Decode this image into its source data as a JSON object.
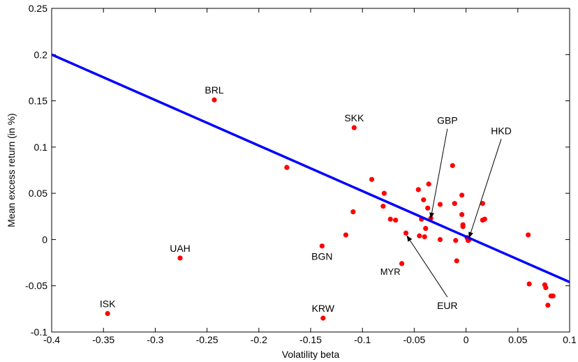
{
  "chart_data": {
    "type": "scatter",
    "title": "",
    "xlabel": "Volatility beta",
    "ylabel": "Mean excess return (in %)",
    "xlim": [
      -0.4,
      0.1
    ],
    "ylim": [
      -0.1,
      0.25
    ],
    "x_ticks": [
      -0.4,
      -0.35,
      -0.3,
      -0.25,
      -0.2,
      -0.15,
      -0.1,
      -0.05,
      0,
      0.05,
      0.1
    ],
    "x_tick_labels": [
      "-0.4",
      "-0.35",
      "-0.3",
      "-0.25",
      "-0.2",
      "-0.15",
      "-0.1",
      "-0.05",
      "0",
      "0.05",
      "0.1"
    ],
    "y_ticks": [
      -0.1,
      -0.05,
      0,
      0.05,
      0.1,
      0.15,
      0.2,
      0.25
    ],
    "y_tick_labels": [
      "-0.1",
      "-0.05",
      "0",
      "0.05",
      "0.1",
      "0.15",
      "0.2",
      "0.25"
    ],
    "grid": false,
    "colors": {
      "points": "#ff0000",
      "fit_line": "#0000ff",
      "axes": "#000000"
    },
    "fit_line": {
      "x": [
        -0.4,
        0.1
      ],
      "y": [
        0.2,
        -0.046
      ]
    },
    "points": [
      {
        "x": -0.346,
        "y": -0.08
      },
      {
        "x": -0.276,
        "y": -0.02
      },
      {
        "x": -0.243,
        "y": 0.151
      },
      {
        "x": -0.173,
        "y": 0.078
      },
      {
        "x": -0.139,
        "y": -0.007
      },
      {
        "x": -0.138,
        "y": -0.085
      },
      {
        "x": -0.116,
        "y": 0.005
      },
      {
        "x": -0.109,
        "y": 0.03
      },
      {
        "x": -0.108,
        "y": 0.121
      },
      {
        "x": -0.091,
        "y": 0.065
      },
      {
        "x": -0.08,
        "y": 0.036
      },
      {
        "x": -0.079,
        "y": 0.05
      },
      {
        "x": -0.073,
        "y": 0.022
      },
      {
        "x": -0.068,
        "y": 0.021
      },
      {
        "x": -0.062,
        "y": -0.026
      },
      {
        "x": -0.058,
        "y": 0.007
      },
      {
        "x": -0.046,
        "y": 0.054
      },
      {
        "x": -0.045,
        "y": 0.004
      },
      {
        "x": -0.043,
        "y": 0.022
      },
      {
        "x": -0.041,
        "y": 0.043
      },
      {
        "x": -0.04,
        "y": 0.003
      },
      {
        "x": -0.039,
        "y": 0.012
      },
      {
        "x": -0.037,
        "y": 0.034
      },
      {
        "x": -0.036,
        "y": 0.06
      },
      {
        "x": -0.034,
        "y": 0.023
      },
      {
        "x": -0.025,
        "y": 0.038
      },
      {
        "x": -0.025,
        "y": 0.0
      },
      {
        "x": -0.013,
        "y": 0.08
      },
      {
        "x": -0.011,
        "y": 0.039
      },
      {
        "x": -0.01,
        "y": -0.001
      },
      {
        "x": -0.009,
        "y": -0.023
      },
      {
        "x": -0.004,
        "y": 0.048
      },
      {
        "x": -0.004,
        "y": 0.027
      },
      {
        "x": -0.003,
        "y": 0.014
      },
      {
        "x": -0.003,
        "y": 0.016
      },
      {
        "x": 0.001,
        "y": 0.002
      },
      {
        "x": 0.002,
        "y": -0.001
      },
      {
        "x": 0.003,
        "y": 0.0
      },
      {
        "x": 0.016,
        "y": 0.039
      },
      {
        "x": 0.016,
        "y": 0.021
      },
      {
        "x": 0.018,
        "y": 0.022
      },
      {
        "x": 0.06,
        "y": 0.005
      },
      {
        "x": 0.061,
        "y": -0.048
      },
      {
        "x": 0.076,
        "y": -0.049
      },
      {
        "x": 0.077,
        "y": -0.052
      },
      {
        "x": 0.079,
        "y": -0.071
      },
      {
        "x": 0.082,
        "y": -0.061
      },
      {
        "x": 0.084,
        "y": -0.061
      }
    ],
    "annotations": [
      {
        "text": "BRL",
        "x": -0.243,
        "y": 0.151,
        "anchor": "above",
        "size": "normal"
      },
      {
        "text": "SKK",
        "x": -0.108,
        "y": 0.121,
        "anchor": "above",
        "size": "normal"
      },
      {
        "text": "UAH",
        "x": -0.276,
        "y": -0.02,
        "anchor": "above",
        "size": "normal"
      },
      {
        "text": "ISK",
        "x": -0.346,
        "y": -0.08,
        "anchor": "above",
        "size": "normal"
      },
      {
        "text": "BGN",
        "x": -0.139,
        "y": -0.007,
        "anchor": "below",
        "size": "normal"
      },
      {
        "text": "KRW",
        "x": -0.138,
        "y": -0.085,
        "anchor": "above",
        "size": "normal"
      },
      {
        "text": "MYR",
        "x": -0.062,
        "y": -0.026,
        "anchor": "below-left",
        "size": "small"
      }
    ],
    "arrow_annotations": [
      {
        "text": "GBP",
        "text_x": -0.018,
        "text_y": 0.125,
        "target_x": -0.034,
        "target_y": 0.023
      },
      {
        "text": "HKD",
        "text_x": 0.034,
        "text_y": 0.114,
        "target_x": 0.003,
        "target_y": 0.002
      },
      {
        "text": "EUR",
        "text_x": -0.018,
        "text_y": -0.075,
        "target_x": -0.057,
        "target_y": 0.004
      }
    ]
  }
}
